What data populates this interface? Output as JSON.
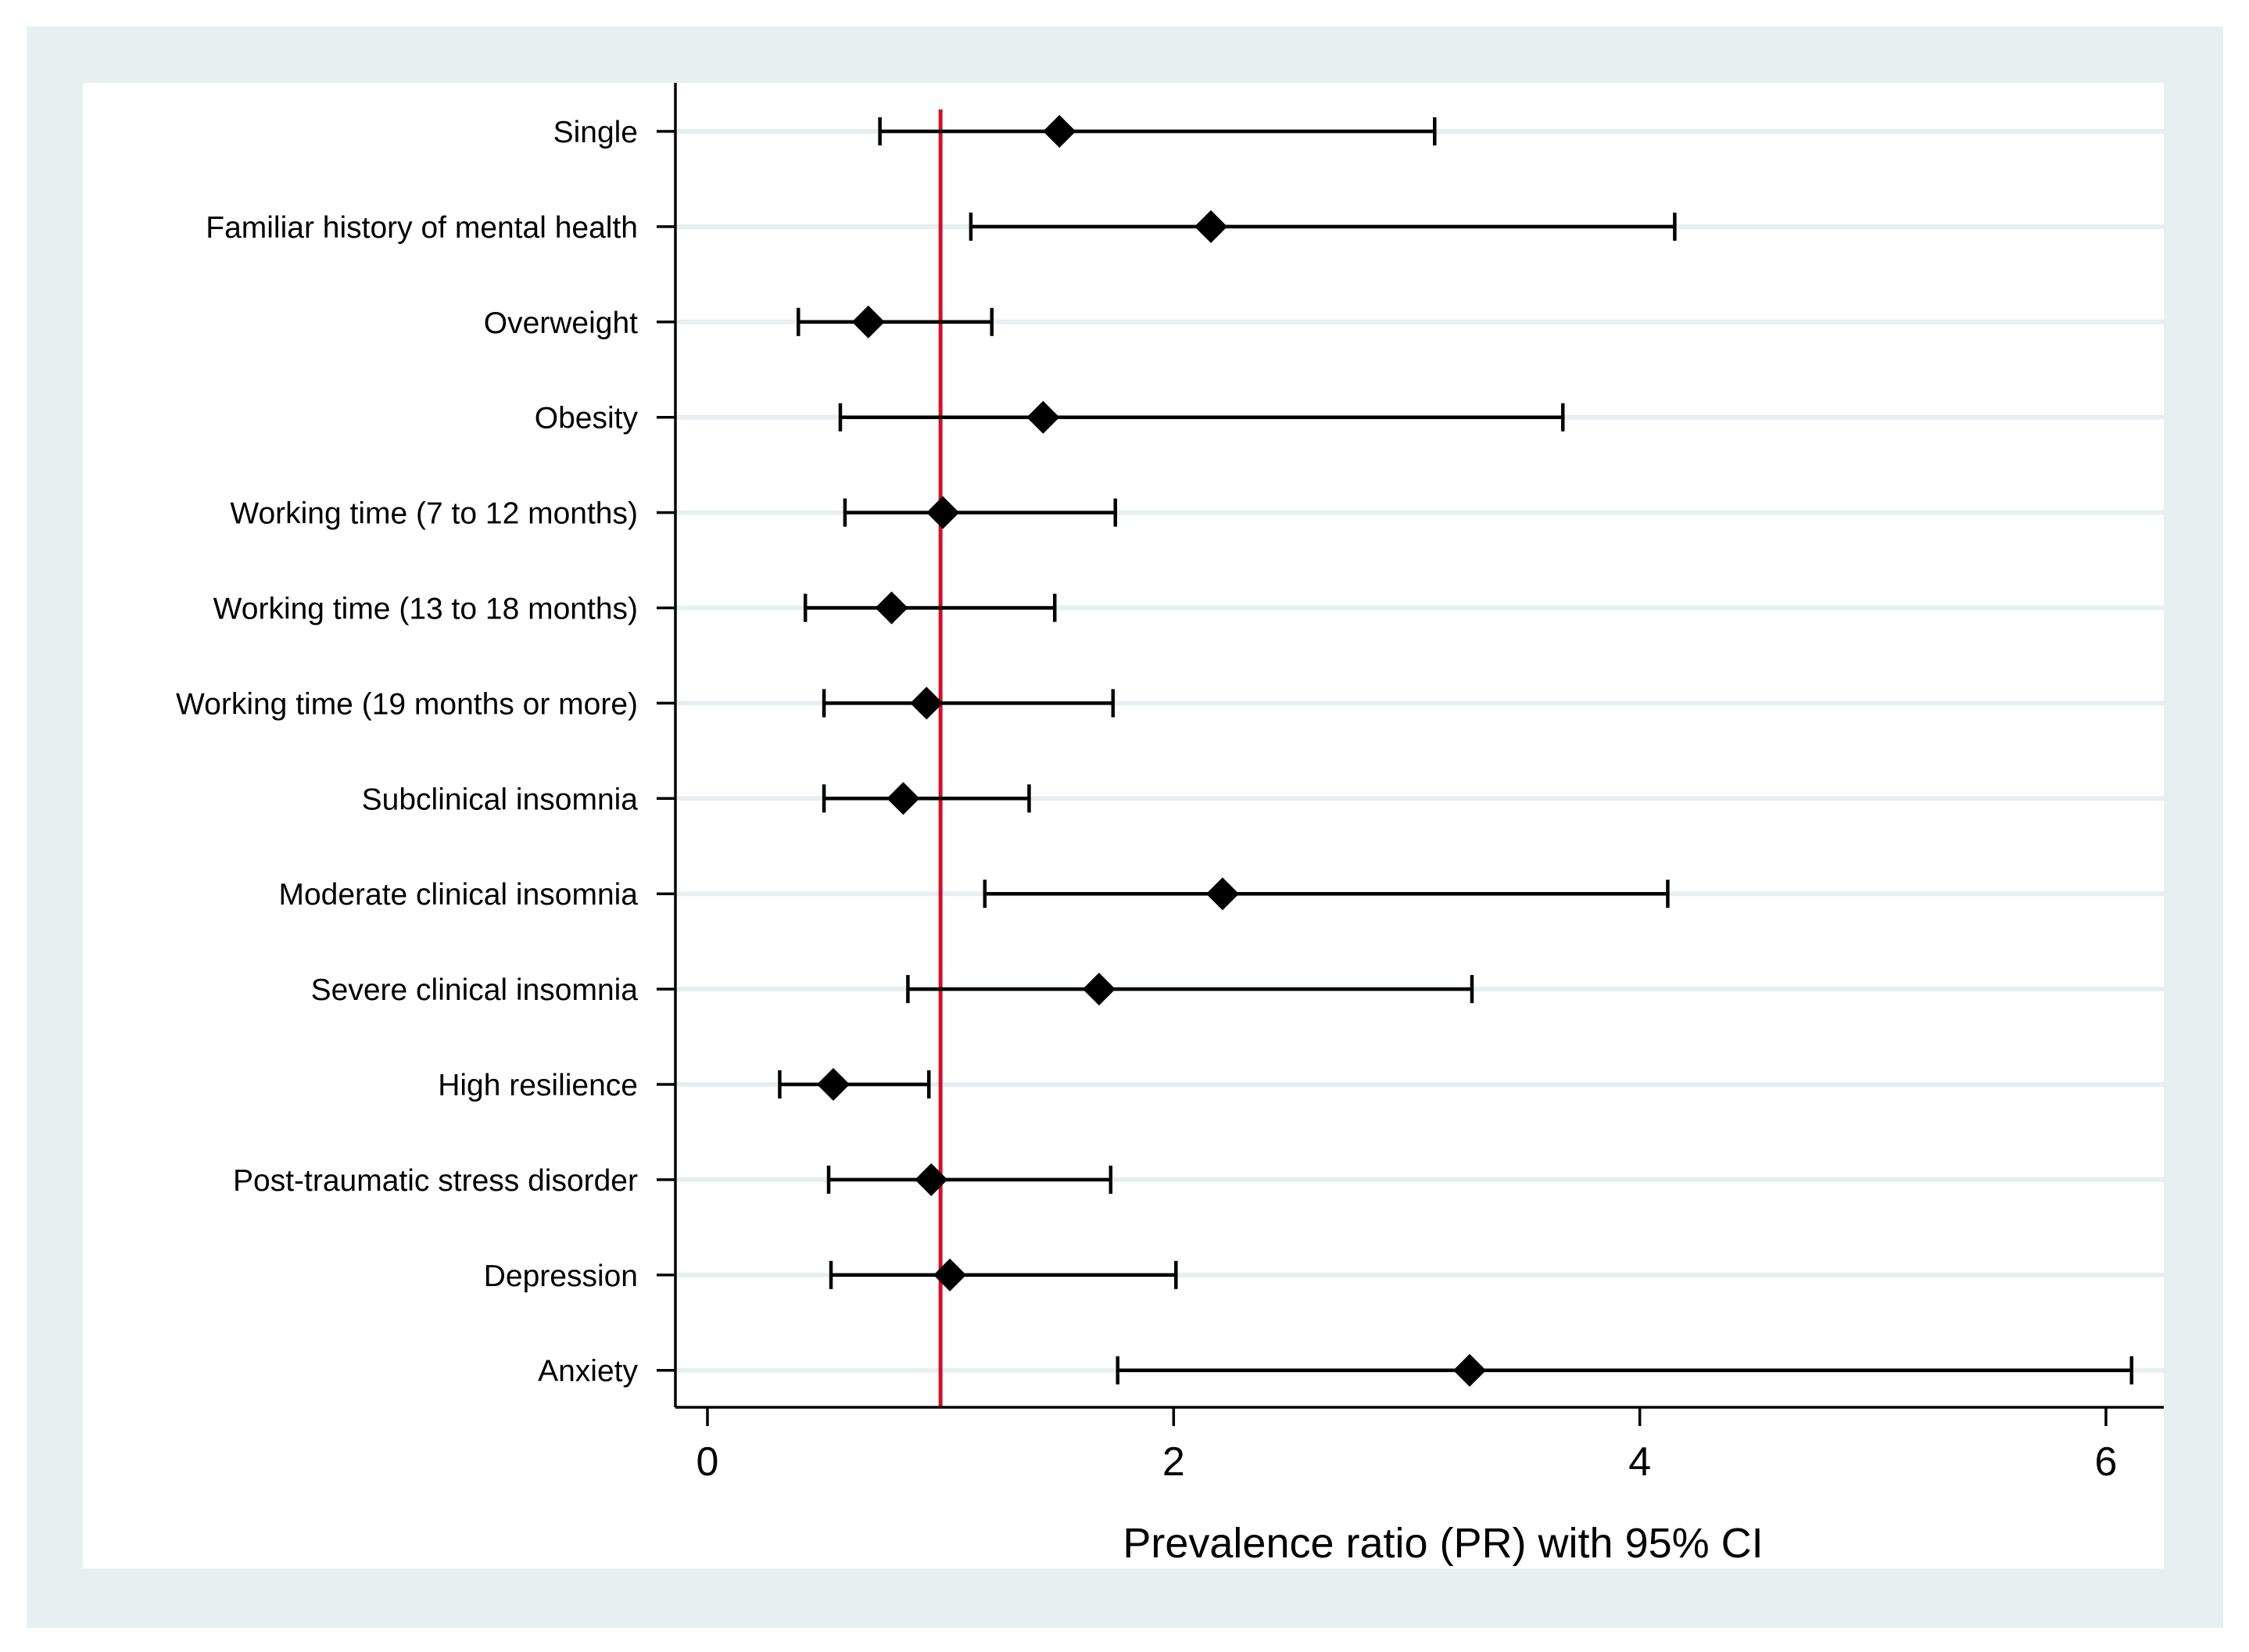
{
  "chart_data": {
    "type": "forest",
    "title": "",
    "xlabel": "Prevalence ratio (PR) with 95% CI",
    "ylabel": "",
    "xlim": [
      -0.15,
      6.25
    ],
    "xticks": [
      0,
      2,
      4,
      6
    ],
    "xtick_labels": [
      "0",
      "2",
      "4",
      "6"
    ],
    "reference_line": {
      "x": 1,
      "color": "#d0102a"
    },
    "grid": "horizontal",
    "marker": "diamond",
    "colors": {
      "marker": "#000000",
      "ci": "#000000",
      "frame_bg": "#e6f0f0",
      "plot_bg": "#ffffff",
      "gridline": "#e6f0f0"
    },
    "rows": [
      {
        "label": "Single",
        "pr": 1.51,
        "lo": 0.74,
        "hi": 3.12
      },
      {
        "label": "Familiar history of mental health",
        "pr": 2.16,
        "lo": 1.13,
        "hi": 4.15
      },
      {
        "label": "Overweight",
        "pr": 0.69,
        "lo": 0.39,
        "hi": 1.22
      },
      {
        "label": "Obesity",
        "pr": 1.44,
        "lo": 0.57,
        "hi": 3.67
      },
      {
        "label": "Working time (7 to 12 months)",
        "pr": 1.01,
        "lo": 0.59,
        "hi": 1.75
      },
      {
        "label": "Working time (13 to 18 months)",
        "pr": 0.79,
        "lo": 0.42,
        "hi": 1.49
      },
      {
        "label": "Working time (19 months or more)",
        "pr": 0.94,
        "lo": 0.5,
        "hi": 1.74
      },
      {
        "label": "Subclinical insomnia",
        "pr": 0.84,
        "lo": 0.5,
        "hi": 1.38
      },
      {
        "label": "Moderate clinical insomnia",
        "pr": 2.21,
        "lo": 1.19,
        "hi": 4.12
      },
      {
        "label": "Severe clinical insomnia",
        "pr": 1.68,
        "lo": 0.86,
        "hi": 3.28
      },
      {
        "label": "High resilience",
        "pr": 0.54,
        "lo": 0.31,
        "hi": 0.95
      },
      {
        "label": "Post-traumatic stress disorder",
        "pr": 0.96,
        "lo": 0.52,
        "hi": 1.73
      },
      {
        "label": "Depression",
        "pr": 1.04,
        "lo": 0.53,
        "hi": 2.01
      },
      {
        "label": "Anxiety",
        "pr": 3.27,
        "lo": 1.76,
        "hi": 6.11
      }
    ]
  }
}
